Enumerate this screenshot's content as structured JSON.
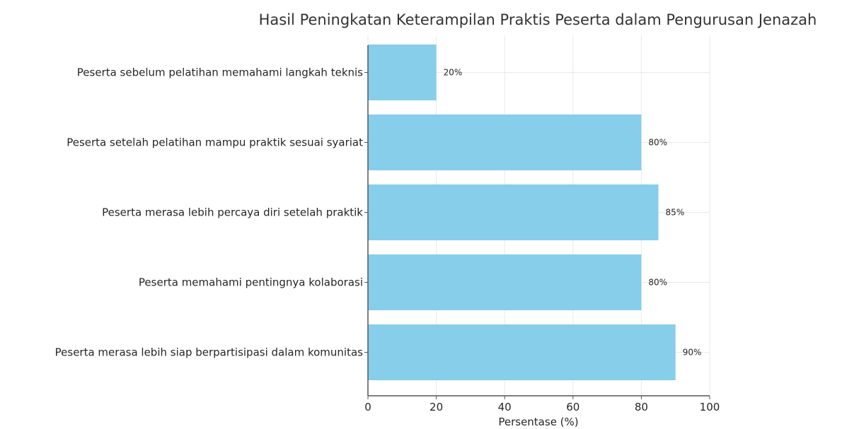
{
  "chart_data": {
    "type": "bar",
    "orientation": "horizontal",
    "title": "Hasil Peningkatan Keterampilan Praktis Peserta dalam Pengurusan Jenazah",
    "xlabel": "Persentase (%)",
    "ylabel": "",
    "xlim": [
      0,
      100
    ],
    "xticks": [
      0,
      20,
      40,
      60,
      80,
      100
    ],
    "grid": true,
    "bar_color": "#87ceeb",
    "categories": [
      "Peserta sebelum pelatihan memahami langkah teknis",
      "Peserta setelah pelatihan mampu praktik sesuai syariat",
      "Peserta merasa lebih percaya diri setelah praktik",
      "Peserta memahami pentingnya kolaborasi",
      "Peserta merasa lebih siap berpartisipasi dalam komunitas"
    ],
    "values": [
      20,
      80,
      85,
      80,
      90
    ],
    "data_labels": [
      "20%",
      "80%",
      "85%",
      "80%",
      "90%"
    ]
  }
}
